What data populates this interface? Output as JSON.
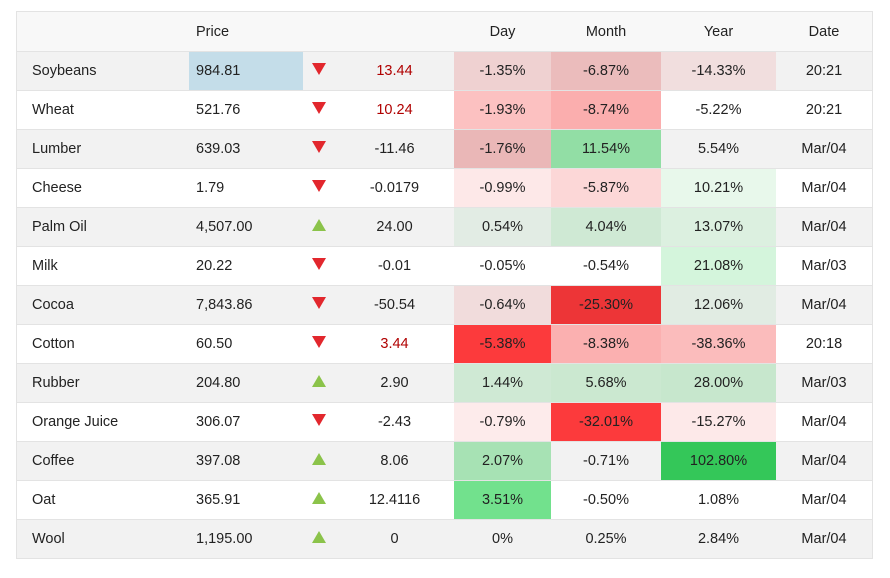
{
  "header": {
    "name": "",
    "price": "Price",
    "arrow": "",
    "change": "",
    "day": "Day",
    "month": "Month",
    "year": "Year",
    "date": "Date"
  },
  "rows": [
    {
      "name": "Soybeans",
      "price": "984.81",
      "dir": "down",
      "change": "13.44",
      "change_red": true,
      "day": "-1.35%",
      "month": "-6.87%",
      "year": "-14.33%",
      "date": "20:21",
      "price_bg": "#c4dde9",
      "day_bg": "#efd1d1",
      "month_bg": "#ebbcbc",
      "year_bg": "#f1dede"
    },
    {
      "name": "Wheat",
      "price": "521.76",
      "dir": "down",
      "change": "10.24",
      "change_red": true,
      "day": "-1.93%",
      "month": "-8.74%",
      "year": "-5.22%",
      "date": "20:21",
      "price_bg": "",
      "day_bg": "#fcc1c1",
      "month_bg": "#fbaeae",
      "year_bg": ""
    },
    {
      "name": "Lumber",
      "price": "639.03",
      "dir": "down",
      "change": "-11.46",
      "change_red": false,
      "day": "-1.76%",
      "month": "11.54%",
      "year": "5.54%",
      "date": "Mar/04",
      "price_bg": "",
      "day_bg": "#eab7b7",
      "month_bg": "#92dea5",
      "year_bg": ""
    },
    {
      "name": "Cheese",
      "price": "1.79",
      "dir": "down",
      "change": "-0.0179",
      "change_red": false,
      "day": "-0.99%",
      "month": "-5.87%",
      "year": "10.21%",
      "date": "Mar/04",
      "price_bg": "",
      "day_bg": "#fde8e8",
      "month_bg": "#fcd7d7",
      "year_bg": "#e8f8eb"
    },
    {
      "name": "Palm Oil",
      "price": "4,507.00",
      "dir": "up",
      "change": "24.00",
      "change_red": false,
      "day": "0.54%",
      "month": "4.04%",
      "year": "13.07%",
      "date": "Mar/04",
      "price_bg": "",
      "day_bg": "#e2ece4",
      "month_bg": "#cfe9d4",
      "year_bg": "#dcf0e0"
    },
    {
      "name": "Milk",
      "price": "20.22",
      "dir": "down",
      "change": "-0.01",
      "change_red": false,
      "day": "-0.05%",
      "month": "-0.54%",
      "year": "21.08%",
      "date": "Mar/03",
      "price_bg": "",
      "day_bg": "",
      "month_bg": "",
      "year_bg": "#d4f5dc"
    },
    {
      "name": "Cocoa",
      "price": "7,843.86",
      "dir": "down",
      "change": "-50.54",
      "change_red": false,
      "day": "-0.64%",
      "month": "-25.30%",
      "year": "12.06%",
      "date": "Mar/04",
      "price_bg": "",
      "day_bg": "#f1dcdc",
      "month_bg": "#ed3537",
      "year_bg": "#e1ece3"
    },
    {
      "name": "Cotton",
      "price": "60.50",
      "dir": "down",
      "change": "3.44",
      "change_red": true,
      "day": "-5.38%",
      "month": "-8.38%",
      "year": "-38.36%",
      "date": "20:18",
      "price_bg": "",
      "day_bg": "#fc3a3c",
      "month_bg": "#fbb0b0",
      "year_bg": "#fbbcbc"
    },
    {
      "name": "Rubber",
      "price": "204.80",
      "dir": "up",
      "change": "2.90",
      "change_red": false,
      "day": "1.44%",
      "month": "5.68%",
      "year": "28.00%",
      "date": "Mar/03",
      "price_bg": "",
      "day_bg": "#cfe9d4",
      "month_bg": "#cbe8d0",
      "year_bg": "#c7e7cd"
    },
    {
      "name": "Orange Juice",
      "price": "306.07",
      "dir": "down",
      "change": "-2.43",
      "change_red": false,
      "day": "-0.79%",
      "month": "-32.01%",
      "year": "-15.27%",
      "date": "Mar/04",
      "price_bg": "",
      "day_bg": "#fdebeb",
      "month_bg": "#fc3a3c",
      "year_bg": "#fde9e9"
    },
    {
      "name": "Coffee",
      "price": "397.08",
      "dir": "up",
      "change": "8.06",
      "change_red": false,
      "day": "2.07%",
      "month": "-0.71%",
      "year": "102.80%",
      "date": "Mar/04",
      "price_bg": "",
      "day_bg": "#a7e2b4",
      "month_bg": "",
      "year_bg": "#34c759"
    },
    {
      "name": "Oat",
      "price": "365.91",
      "dir": "up",
      "change": "12.4116",
      "change_red": false,
      "day": "3.51%",
      "month": "-0.50%",
      "year": "1.08%",
      "date": "Mar/04",
      "price_bg": "",
      "day_bg": "#72e18d",
      "month_bg": "",
      "year_bg": ""
    },
    {
      "name": "Wool",
      "price": "1,195.00",
      "dir": "up",
      "change": "0",
      "change_red": false,
      "day": "0%",
      "month": "0.25%",
      "year": "2.84%",
      "date": "Mar/04",
      "price_bg": "",
      "day_bg": "",
      "month_bg": "",
      "year_bg": ""
    }
  ]
}
